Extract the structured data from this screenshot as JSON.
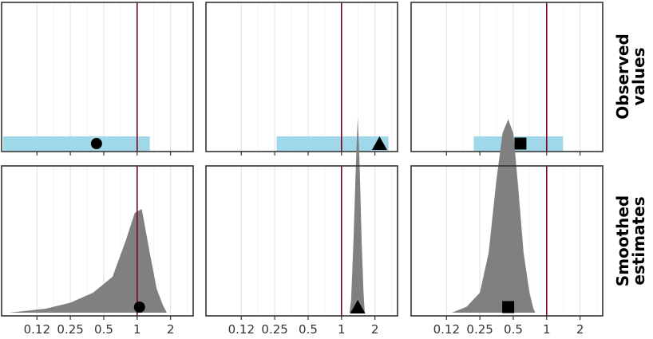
{
  "chart_data": {
    "type": "faceted-interval-density",
    "x_scale": "log2",
    "x_range": [
      0.06,
      3.2
    ],
    "x_ticks": [
      0.125,
      0.25,
      0.5,
      1,
      2
    ],
    "x_tick_labels": [
      "0.12",
      "0.25",
      "0.5",
      "1",
      "2"
    ],
    "reference_line": 1,
    "grid": true,
    "row_labels": [
      "Observed values",
      "Smoothed estimates"
    ],
    "colors": {
      "interval": "#9fd8e8",
      "density": "#808080",
      "reference": "#800020",
      "marker": "#000000",
      "grid": "#e5e5e5",
      "border": "#333333"
    },
    "columns": [
      {
        "marker": "circle",
        "observed": {
          "estimate": 0.43,
          "lower": 0.062,
          "upper": 1.3
        },
        "smoothed": {
          "estimate": 1.05,
          "density": [
            [
              0.07,
              0.0
            ],
            [
              0.15,
              0.02
            ],
            [
              0.25,
              0.05
            ],
            [
              0.4,
              0.1
            ],
            [
              0.6,
              0.18
            ],
            [
              0.8,
              0.37
            ],
            [
              0.95,
              0.5
            ],
            [
              1.1,
              0.52
            ],
            [
              1.3,
              0.3
            ],
            [
              1.5,
              0.12
            ],
            [
              1.7,
              0.04
            ],
            [
              1.85,
              0.0
            ]
          ]
        }
      },
      {
        "marker": "triangle",
        "observed": {
          "estimate": 2.2,
          "lower": 0.26,
          "upper": 2.65
        },
        "smoothed": {
          "estimate": 1.4,
          "density": [
            [
              1.18,
              0.0
            ],
            [
              1.22,
              0.06
            ],
            [
              1.28,
              0.35
            ],
            [
              1.35,
              0.75
            ],
            [
              1.4,
              0.98
            ],
            [
              1.45,
              0.78
            ],
            [
              1.52,
              0.35
            ],
            [
              1.58,
              0.1
            ],
            [
              1.62,
              0.0
            ]
          ]
        }
      },
      {
        "marker": "square",
        "observed": {
          "estimate": 0.58,
          "lower": 0.22,
          "upper": 1.4
        },
        "smoothed": {
          "estimate": 0.45,
          "density": [
            [
              0.14,
              0.0
            ],
            [
              0.19,
              0.03
            ],
            [
              0.25,
              0.1
            ],
            [
              0.3,
              0.3
            ],
            [
              0.35,
              0.65
            ],
            [
              0.4,
              0.9
            ],
            [
              0.45,
              0.97
            ],
            [
              0.5,
              0.9
            ],
            [
              0.55,
              0.65
            ],
            [
              0.62,
              0.3
            ],
            [
              0.7,
              0.1
            ],
            [
              0.76,
              0.02
            ],
            [
              0.79,
              0.0
            ]
          ]
        }
      }
    ]
  }
}
